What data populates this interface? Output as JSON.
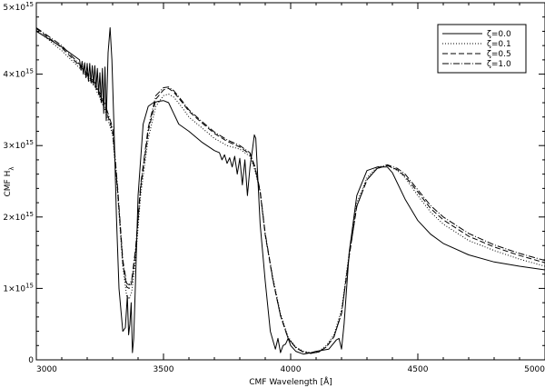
{
  "chart_data": {
    "type": "line",
    "title": "",
    "xlabel": "CMF Wavelength [Å]",
    "ylabel": "CMF H",
    "ylabel_sub": "λ",
    "xlim": [
      3000,
      5000
    ],
    "ylim": [
      0,
      5000000000000000.0
    ],
    "x_ticks": [
      3000,
      3500,
      4000,
      4500,
      5000
    ],
    "x_tick_labels": [
      "3000",
      "3500",
      "4000",
      "4500",
      "5000"
    ],
    "y_ticks": [
      0,
      1000000000000000.0,
      2000000000000000.0,
      3000000000000000.0,
      4000000000000000.0,
      5000000000000000.0
    ],
    "y_tick_labels": [
      {
        "base": "0",
        "exp": ""
      },
      {
        "base": "1×10",
        "exp": "15"
      },
      {
        "base": "2×10",
        "exp": "15"
      },
      {
        "base": "3×10",
        "exp": "15"
      },
      {
        "base": "4×10",
        "exp": "15"
      },
      {
        "base": "5×10",
        "exp": "15"
      }
    ],
    "grid": false,
    "legend_position": "top-right",
    "series": [
      {
        "name": "ζ=0.0",
        "style": "solid",
        "x": [
          3000,
          3100,
          3170,
          3175,
          3180,
          3185,
          3190,
          3195,
          3200,
          3205,
          3210,
          3215,
          3220,
          3225,
          3230,
          3235,
          3240,
          3245,
          3250,
          3255,
          3260,
          3265,
          3270,
          3275,
          3282,
          3290,
          3297,
          3305,
          3315,
          3325,
          3340,
          3350,
          3358,
          3363,
          3368,
          3373,
          3378,
          3383,
          3390,
          3400,
          3420,
          3440,
          3460,
          3480,
          3500,
          3520,
          3540,
          3560,
          3600,
          3650,
          3700,
          3720,
          3730,
          3740,
          3750,
          3760,
          3770,
          3780,
          3790,
          3800,
          3810,
          3820,
          3830,
          3840,
          3850,
          3857,
          3863,
          3870,
          3880,
          3900,
          3920,
          3940,
          3950,
          3960,
          3970,
          3980,
          3990,
          4000,
          4020,
          4050,
          4080,
          4100,
          4150,
          4180,
          4190,
          4200,
          4210,
          4230,
          4260,
          4300,
          4340,
          4380,
          4400,
          4450,
          4500,
          4550,
          4600,
          4700,
          4800,
          4900,
          5000
        ],
        "values": [
          4600000000000000.0,
          4380000000000000.0,
          4200000000000000.0,
          4060000000000000.0,
          4180000000000000.0,
          4000000000000000.0,
          4160000000000000.0,
          3950000000000000.0,
          4150000000000000.0,
          3900000000000000.0,
          4150000000000000.0,
          3880000000000000.0,
          4120000000000000.0,
          3850000000000000.0,
          4120000000000000.0,
          3800000000000000.0,
          4080000000000000.0,
          3720000000000000.0,
          4020000000000000.0,
          3600000000000000.0,
          4080000000000000.0,
          3450000000000000.0,
          4100000000000000.0,
          3350000000000000.0,
          4300000000000000.0,
          4650000000000000.0,
          4200000000000000.0,
          3300000000000000.0,
          2000000000000000.0,
          1000000000000000.0,
          400000000000000.0,
          450000000000000.0,
          900000000000000.0,
          350000000000000.0,
          500000000000000.0,
          800000000000000.0,
          100000000000000.0,
          300000000000000.0,
          1100000000000000.0,
          2300000000000000.0,
          3300000000000000.0,
          3550000000000000.0,
          3600000000000000.0,
          3620000000000000.0,
          3630000000000000.0,
          3600000000000000.0,
          3450000000000000.0,
          3300000000000000.0,
          3200000000000000.0,
          3050000000000000.0,
          2930000000000000.0,
          2900000000000000.0,
          2800000000000000.0,
          2870000000000000.0,
          2750000000000000.0,
          2830000000000000.0,
          2700000000000000.0,
          2850000000000000.0,
          2600000000000000.0,
          2820000000000000.0,
          2450000000000000.0,
          2800000000000000.0,
          2300000000000000.0,
          2700000000000000.0,
          2950000000000000.0,
          3150000000000000.0,
          3100000000000000.0,
          2600000000000000.0,
          1900000000000000.0,
          1100000000000000.0,
          400000000000000.0,
          150000000000000.0,
          300000000000000.0,
          100000000000000.0,
          200000000000000.0,
          220000000000000.0,
          300000000000000.0,
          200000000000000.0,
          120000000000000.0,
          80000000000000.0,
          100000000000000.0,
          120000000000000.0,
          150000000000000.0,
          280000000000000.0,
          300000000000000.0,
          150000000000000.0,
          500000000000000.0,
          1500000000000000.0,
          2300000000000000.0,
          2650000000000000.0,
          2700000000000000.0,
          2700000000000000.0,
          2620000000000000.0,
          2250000000000000.0,
          1950000000000000.0,
          1760000000000000.0,
          1630000000000000.0,
          1470000000000000.0,
          1370000000000000.0,
          1310000000000000.0,
          1260000000000000.0
        ]
      },
      {
        "name": "ζ=0.1",
        "style": "dotted",
        "x": [
          3000,
          3100,
          3180,
          3230,
          3270,
          3300,
          3320,
          3340,
          3355,
          3365,
          3375,
          3390,
          3410,
          3440,
          3470,
          3500,
          3520,
          3540,
          3570,
          3600,
          3650,
          3700,
          3750,
          3800,
          3840,
          3860,
          3880,
          3900,
          3930,
          3960,
          3990,
          4020,
          4050,
          4080,
          4110,
          4140,
          4170,
          4200,
          4230,
          4260,
          4300,
          4340,
          4380,
          4420,
          4450,
          4500,
          4550,
          4600,
          4700,
          4800,
          4900,
          5000
        ],
        "values": [
          4620000000000000.0,
          4330000000000000.0,
          4050000000000000.0,
          3820000000000000.0,
          3500000000000000.0,
          3150000000000000.0,
          2300000000000000.0,
          1300000000000000.0,
          900000000000000.0,
          850000000000000.0,
          950000000000000.0,
          1400000000000000.0,
          2300000000000000.0,
          3100000000000000.0,
          3550000000000000.0,
          3700000000000000.0,
          3720000000000000.0,
          3680000000000000.0,
          3550000000000000.0,
          3400000000000000.0,
          3250000000000000.0,
          3100000000000000.0,
          3000000000000000.0,
          2950000000000000.0,
          2850000000000000.0,
          2650000000000000.0,
          2350000000000000.0,
          1750000000000000.0,
          1150000000000000.0,
          650000000000000.0,
          320000000000000.0,
          180000000000000.0,
          120000000000000.0,
          100000000000000.0,
          120000000000000.0,
          200000000000000.0,
          350000000000000.0,
          700000000000000.0,
          1500000000000000.0,
          2200000000000000.0,
          2550000000000000.0,
          2700000000000000.0,
          2720000000000000.0,
          2650000000000000.0,
          2550000000000000.0,
          2300000000000000.0,
          2070000000000000.0,
          1900000000000000.0,
          1670000000000000.0,
          1530000000000000.0,
          1410000000000000.0,
          1310000000000000.0
        ]
      },
      {
        "name": "ζ=0.5",
        "style": "dashed",
        "x": [
          3000,
          3100,
          3180,
          3230,
          3270,
          3300,
          3320,
          3340,
          3355,
          3365,
          3375,
          3390,
          3410,
          3440,
          3470,
          3500,
          3520,
          3540,
          3570,
          3600,
          3650,
          3700,
          3750,
          3800,
          3840,
          3860,
          3880,
          3900,
          3930,
          3960,
          3990,
          4020,
          4050,
          4080,
          4110,
          4140,
          4170,
          4200,
          4230,
          4260,
          4300,
          4340,
          4380,
          4420,
          4450,
          4500,
          4550,
          4600,
          4700,
          4800,
          4900,
          5000
        ],
        "values": [
          4640000000000000.0,
          4370000000000000.0,
          4080000000000000.0,
          3850000000000000.0,
          3550000000000000.0,
          3200000000000000.0,
          2350000000000000.0,
          1350000000000000.0,
          1020000000000000.0,
          1000000000000000.0,
          1080000000000000.0,
          1500000000000000.0,
          2400000000000000.0,
          3200000000000000.0,
          3650000000000000.0,
          3780000000000000.0,
          3800000000000000.0,
          3750000000000000.0,
          3620000000000000.0,
          3480000000000000.0,
          3320000000000000.0,
          3170000000000000.0,
          3060000000000000.0,
          2980000000000000.0,
          2880000000000000.0,
          2680000000000000.0,
          2350000000000000.0,
          1750000000000000.0,
          1120000000000000.0,
          620000000000000.0,
          300000000000000.0,
          170000000000000.0,
          110000000000000.0,
          90000000000000.0,
          110000000000000.0,
          180000000000000.0,
          320000000000000.0,
          650000000000000.0,
          1450000000000000.0,
          2150000000000000.0,
          2520000000000000.0,
          2680000000000000.0,
          2720000000000000.0,
          2660000000000000.0,
          2570000000000000.0,
          2350000000000000.0,
          2120000000000000.0,
          1960000000000000.0,
          1730000000000000.0,
          1580000000000000.0,
          1460000000000000.0,
          1360000000000000.0
        ]
      },
      {
        "name": "ζ=1.0",
        "style": "dashdot",
        "x": [
          3000,
          3100,
          3180,
          3230,
          3270,
          3300,
          3320,
          3340,
          3355,
          3365,
          3375,
          3390,
          3410,
          3440,
          3470,
          3500,
          3520,
          3540,
          3570,
          3600,
          3650,
          3700,
          3750,
          3800,
          3840,
          3860,
          3880,
          3900,
          3930,
          3960,
          3990,
          4020,
          4050,
          4080,
          4110,
          4140,
          4170,
          4200,
          4230,
          4260,
          4300,
          4340,
          4380,
          4420,
          4450,
          4500,
          4550,
          4600,
          4700,
          4800,
          4900,
          5000
        ],
        "values": [
          4650000000000000.0,
          4400000000000000.0,
          4100000000000000.0,
          3880000000000000.0,
          3580000000000000.0,
          3250000000000000.0,
          2400000000000000.0,
          1400000000000000.0,
          1070000000000000.0,
          1050000000000000.0,
          1120000000000000.0,
          1550000000000000.0,
          2450000000000000.0,
          3250000000000000.0,
          3700000000000000.0,
          3810000000000000.0,
          3820000000000000.0,
          3770000000000000.0,
          3640000000000000.0,
          3500000000000000.0,
          3340000000000000.0,
          3190000000000000.0,
          3080000000000000.0,
          3000000000000000.0,
          2900000000000000.0,
          2700000000000000.0,
          2370000000000000.0,
          1770000000000000.0,
          1130000000000000.0,
          620000000000000.0,
          300000000000000.0,
          170000000000000.0,
          110000000000000.0,
          90000000000000.0,
          110000000000000.0,
          180000000000000.0,
          320000000000000.0,
          650000000000000.0,
          1450000000000000.0,
          2150000000000000.0,
          2520000000000000.0,
          2680000000000000.0,
          2730000000000000.0,
          2680000000000000.0,
          2600000000000000.0,
          2380000000000000.0,
          2160000000000000.0,
          2000000000000000.0,
          1770000000000000.0,
          1610000000000000.0,
          1490000000000000.0,
          1390000000000000.0
        ]
      }
    ]
  }
}
